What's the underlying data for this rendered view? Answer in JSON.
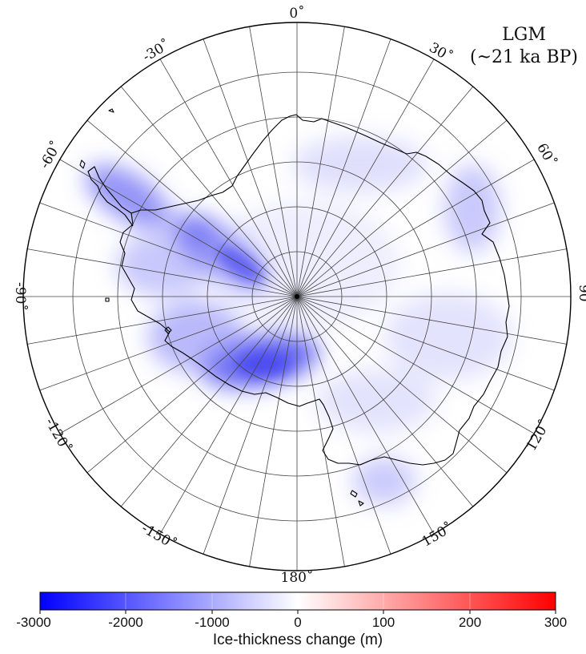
{
  "map": {
    "title_line1": "LGM",
    "title_line2": "(~21 ka BP)",
    "longitude_labels": [
      "0˚",
      "30˚",
      "60˚",
      "90˚",
      "120˚",
      "150˚",
      "180˚",
      "-150˚",
      "-120˚",
      "-90˚",
      "-60˚",
      "-30˚"
    ]
  },
  "colorbar": {
    "title": "Ice-thickness change (m)",
    "tick_labels": [
      "-3000",
      "-2000",
      "-1000",
      "0",
      "100",
      "200",
      "300"
    ],
    "min_color": "#0000ff",
    "mid_color": "#ffffff",
    "max_color": "#ff0000"
  },
  "colors": {
    "coastline": "#000000",
    "graticule": "#444444",
    "background": "#ffffff"
  }
}
